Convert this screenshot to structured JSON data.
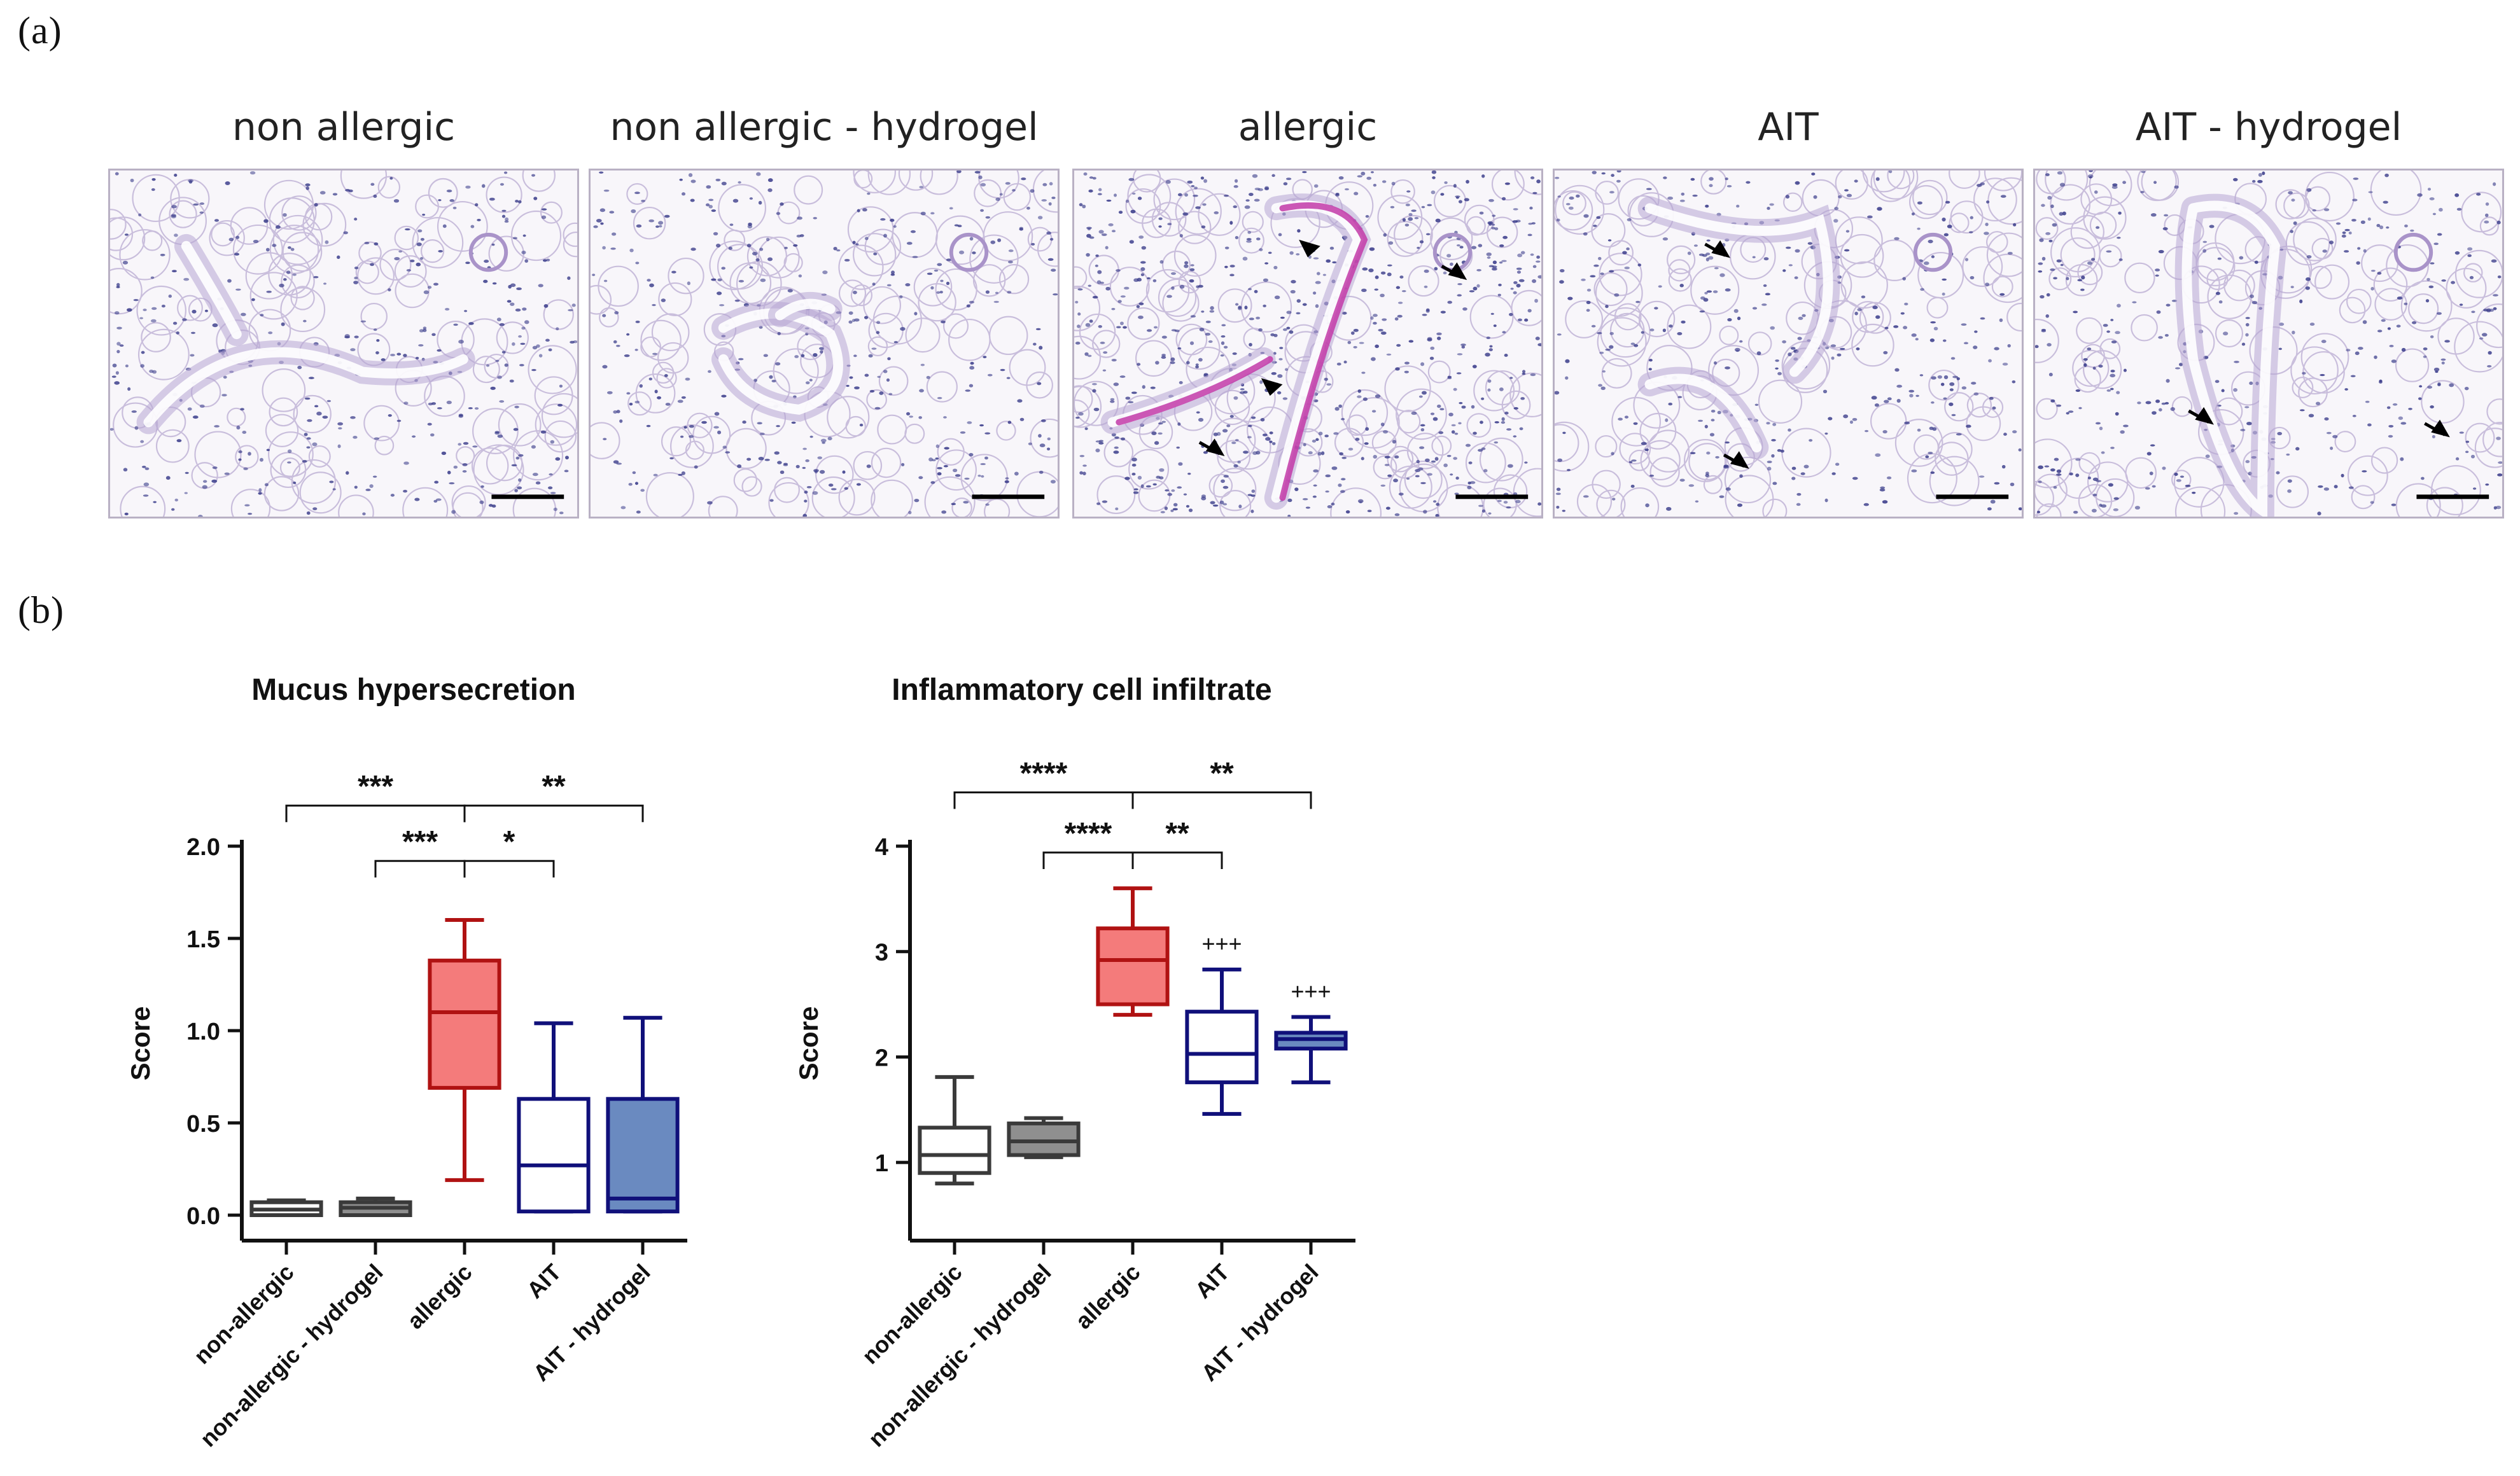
{
  "panel_a_label": "(a)",
  "panel_b_label": "(b)",
  "micrographs": [
    {
      "title": "non allergic",
      "arrows": []
    },
    {
      "title": "non allergic - hydrogel",
      "arrows": []
    },
    {
      "title": "allergic",
      "arrows": [
        "arrowhead",
        "arrowhead",
        "arrow",
        "arrow"
      ]
    },
    {
      "title": "AIT",
      "arrows": [
        "arrow",
        "arrow"
      ]
    },
    {
      "title": "AIT - hydrogel",
      "arrows": [
        "arrow",
        "arrow"
      ]
    }
  ],
  "colors": {
    "dark_gray": "#3a3a3a",
    "gray_fill": "#8f8f8f",
    "red": "#b01212",
    "red_fill": "#f47b7b",
    "navy": "#10107a",
    "blue_fill": "#6a8ac0",
    "tissue": "#c9bedc",
    "nuclei": "#3d3f8c",
    "mucus": "#c23aa8"
  },
  "chart_data": [
    {
      "type": "box",
      "title": "Mucus hypersecretion",
      "ylabel": "Score",
      "ylim": [
        0,
        2.0
      ],
      "yticks": [
        "0.0",
        "0.5",
        "1.0",
        "1.5",
        "2.0"
      ],
      "ytick_values": [
        0,
        0.5,
        1.0,
        1.5,
        2.0
      ],
      "categories": [
        "non-allergic",
        "non-allergic - hydrogel",
        "allergic",
        "AIT",
        "AIT - hydrogel"
      ],
      "boxes": [
        {
          "min": 0.0,
          "q1": 0.0,
          "median": 0.03,
          "q3": 0.07,
          "max": 0.08,
          "color": "dark_gray",
          "fill": "none"
        },
        {
          "min": 0.0,
          "q1": 0.0,
          "median": 0.04,
          "q3": 0.07,
          "max": 0.09,
          "color": "dark_gray",
          "fill": "gray_fill"
        },
        {
          "min": 0.19,
          "q1": 0.69,
          "median": 1.1,
          "q3": 1.38,
          "max": 1.6,
          "color": "red",
          "fill": "red_fill"
        },
        {
          "min": 0.02,
          "q1": 0.02,
          "median": 0.27,
          "q3": 0.63,
          "max": 1.04,
          "color": "navy",
          "fill": "none"
        },
        {
          "min": 0.02,
          "q1": 0.02,
          "median": 0.09,
          "q3": 0.63,
          "max": 1.07,
          "color": "navy",
          "fill": "blue_fill"
        }
      ],
      "brackets": [
        {
          "from": 0,
          "to": 2,
          "label": "***",
          "y": 2.22
        },
        {
          "from": 2,
          "to": 4,
          "label": "**",
          "y": 2.22
        },
        {
          "from": 1,
          "to": 2,
          "label": "***",
          "y": 1.92
        },
        {
          "from": 2,
          "to": 3,
          "label": "*",
          "y": 1.92
        }
      ],
      "markers": []
    },
    {
      "type": "box",
      "title": "Inflammatory cell infiltrate",
      "ylabel": "Score",
      "ylim": [
        0.5,
        4
      ],
      "yticks": [
        "1",
        "2",
        "3",
        "4"
      ],
      "ytick_values": [
        1,
        2,
        3,
        4
      ],
      "categories": [
        "non-allergic",
        "non-allergic - hydrogel",
        "allergic",
        "AIT",
        "AIT - hydrogel"
      ],
      "boxes": [
        {
          "min": 0.8,
          "q1": 0.9,
          "median": 1.07,
          "q3": 1.33,
          "max": 1.81,
          "color": "dark_gray",
          "fill": "none"
        },
        {
          "min": 1.05,
          "q1": 1.07,
          "median": 1.2,
          "q3": 1.37,
          "max": 1.42,
          "color": "dark_gray",
          "fill": "gray_fill"
        },
        {
          "min": 2.4,
          "q1": 2.5,
          "median": 2.92,
          "q3": 3.22,
          "max": 3.6,
          "color": "red",
          "fill": "red_fill"
        },
        {
          "min": 1.46,
          "q1": 1.76,
          "median": 2.03,
          "q3": 2.43,
          "max": 2.83,
          "color": "navy",
          "fill": "none"
        },
        {
          "min": 1.76,
          "q1": 2.08,
          "median": 2.17,
          "q3": 2.23,
          "max": 2.38,
          "color": "navy",
          "fill": "blue_fill"
        }
      ],
      "brackets": [
        {
          "from": 0,
          "to": 2,
          "label": "****",
          "y": 4.51
        },
        {
          "from": 2,
          "to": 4,
          "label": "**",
          "y": 4.51
        },
        {
          "from": 1,
          "to": 2,
          "label": "****",
          "y": 3.94
        },
        {
          "from": 2,
          "to": 3,
          "label": "**",
          "y": 3.94
        }
      ],
      "markers": [
        {
          "index": 3,
          "label": "+++",
          "y": 3.0
        },
        {
          "index": 4,
          "label": "+++",
          "y": 2.55
        }
      ]
    }
  ]
}
